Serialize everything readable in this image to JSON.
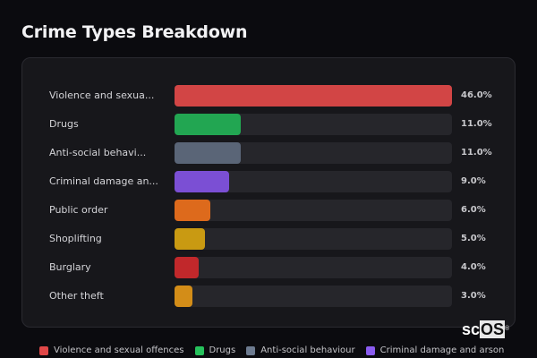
{
  "title": "Crime Types Breakdown",
  "rows": [
    {
      "label": "Violence and sexua...",
      "value": 46.0,
      "value_label": "46.0%",
      "color": "#d24545"
    },
    {
      "label": "Drugs",
      "value": 11.0,
      "value_label": "11.0%",
      "color": "#22a652"
    },
    {
      "label": "Anti-social behavi...",
      "value": 11.0,
      "value_label": "11.0%",
      "color": "#5a6577"
    },
    {
      "label": "Criminal damage an...",
      "value": 9.0,
      "value_label": "9.0%",
      "color": "#7b4fd4"
    },
    {
      "label": "Public order",
      "value": 6.0,
      "value_label": "6.0%",
      "color": "#dd6a1c"
    },
    {
      "label": "Shoplifting",
      "value": 5.0,
      "value_label": "5.0%",
      "color": "#c99a12"
    },
    {
      "label": "Burglary",
      "value": 4.0,
      "value_label": "4.0%",
      "color": "#c1282b"
    },
    {
      "label": "Other theft",
      "value": 3.0,
      "value_label": "3.0%",
      "color": "#d38d18"
    }
  ],
  "legend": [
    {
      "label": "Violence and sexual offences",
      "color": "#e04848"
    },
    {
      "label": "Drugs",
      "color": "#26c15c"
    },
    {
      "label": "Anti-social behaviour",
      "color": "#6d7b90"
    },
    {
      "label": "Criminal damage and arson",
      "color": "#8a5cf0"
    }
  ],
  "watermark": {
    "prefix": "sc",
    "highlight": "OS",
    "mark": "®"
  },
  "chart_data": {
    "type": "bar",
    "orientation": "horizontal",
    "title": "Crime Types Breakdown",
    "categories": [
      "Violence and sexual offences",
      "Drugs",
      "Anti-social behaviour",
      "Criminal damage and arson",
      "Public order",
      "Shoplifting",
      "Burglary",
      "Other theft"
    ],
    "values": [
      46.0,
      11.0,
      11.0,
      9.0,
      6.0,
      5.0,
      4.0,
      3.0
    ],
    "value_labels": [
      "46.0%",
      "11.0%",
      "11.0%",
      "9.0%",
      "6.0%",
      "5.0%",
      "4.0%",
      "3.0%"
    ],
    "unit": "%",
    "xlabel": "",
    "ylabel": "",
    "xlim": [
      0,
      46
    ],
    "grid": false,
    "legend_position": "bottom"
  }
}
